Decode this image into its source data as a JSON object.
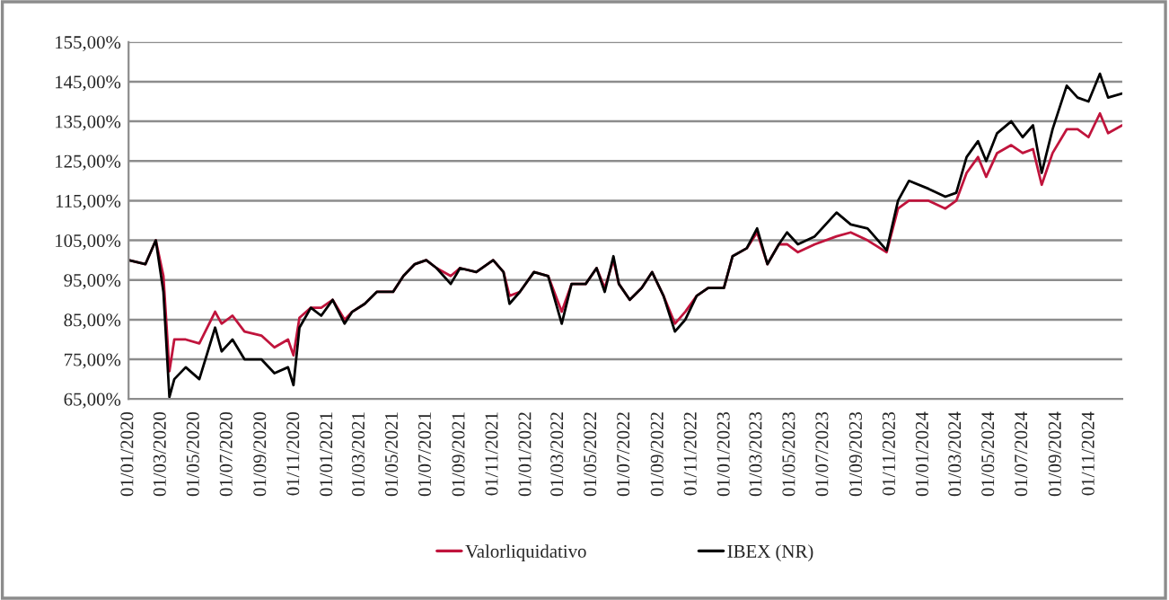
{
  "chart_data": {
    "type": "line",
    "legend": "bottom",
    "grid": "y",
    "line_style": "solid",
    "x": [
      "2020-01-01",
      "2020-02-01",
      "2020-02-20",
      "2020-03-05",
      "2020-03-16",
      "2020-03-25",
      "2020-04-15",
      "2020-05-10",
      "2020-06-08",
      "2020-06-20",
      "2020-07-10",
      "2020-08-01",
      "2020-09-01",
      "2020-09-25",
      "2020-10-20",
      "2020-10-30",
      "2020-11-10",
      "2020-12-01",
      "2020-12-20",
      "2021-01-10",
      "2021-02-01",
      "2021-02-15",
      "2021-03-10",
      "2021-04-01",
      "2021-05-01",
      "2021-05-20",
      "2021-06-10",
      "2021-07-01",
      "2021-07-20",
      "2021-08-15",
      "2021-09-01",
      "2021-10-01",
      "2021-11-01",
      "2021-11-20",
      "2021-12-01",
      "2021-12-20",
      "2022-01-15",
      "2022-02-10",
      "2022-03-07",
      "2022-03-25",
      "2022-04-20",
      "2022-05-10",
      "2022-05-25",
      "2022-06-10",
      "2022-06-20",
      "2022-07-10",
      "2022-08-01",
      "2022-08-20",
      "2022-09-10",
      "2022-10-01",
      "2022-10-20",
      "2022-11-10",
      "2022-12-01",
      "2022-12-30",
      "2023-01-15",
      "2023-02-10",
      "2023-03-01",
      "2023-03-20",
      "2023-04-10",
      "2023-04-25",
      "2023-05-15",
      "2023-06-15",
      "2023-07-25",
      "2023-08-20",
      "2023-09-20",
      "2023-10-25",
      "2023-11-15",
      "2023-12-05",
      "2024-01-10",
      "2024-02-10",
      "2024-03-01",
      "2024-03-20",
      "2024-04-10",
      "2024-04-25",
      "2024-05-15",
      "2024-06-10",
      "2024-07-01",
      "2024-07-20",
      "2024-08-05",
      "2024-08-25",
      "2024-09-20",
      "2024-10-10",
      "2024-10-30",
      "2024-11-20",
      "2024-12-05",
      "2024-12-31"
    ],
    "series": [
      {
        "name": "Valorliquidativo",
        "color": "#c0143c",
        "values": [
          100,
          99,
          105,
          96,
          72,
          80,
          80,
          79,
          87,
          84,
          86,
          82,
          81,
          78,
          80,
          76,
          85.5,
          88,
          88,
          90,
          85,
          87,
          89,
          92,
          92,
          96,
          99,
          100,
          98,
          96,
          98,
          97,
          100,
          97,
          91,
          92,
          97,
          96,
          87,
          94,
          94,
          98,
          93,
          100,
          94,
          90,
          93,
          97,
          91,
          84,
          87,
          91,
          93,
          93,
          101,
          103,
          107,
          99,
          104,
          104,
          102,
          104,
          106,
          107,
          105,
          102,
          113,
          115,
          115,
          113,
          115,
          122,
          126,
          121,
          127,
          129,
          127,
          128,
          119,
          127,
          133,
          133,
          131,
          137,
          132,
          134
        ]
      },
      {
        "name": "IBEX (NR)",
        "color": "#000000",
        "values": [
          100,
          99,
          105,
          92,
          65.5,
          70,
          73,
          70,
          83,
          77,
          80,
          75,
          75,
          71.5,
          73,
          68.5,
          83,
          88,
          86,
          90,
          84,
          87,
          89,
          92,
          92,
          96,
          99,
          100,
          98,
          94,
          98,
          97,
          100,
          97,
          89,
          92,
          97,
          96,
          84,
          94,
          94,
          98,
          92,
          101,
          94,
          90,
          93,
          97,
          91,
          82,
          85,
          91,
          93,
          93,
          101,
          103,
          108,
          99,
          104,
          107,
          104,
          106,
          112,
          109,
          108,
          102.5,
          115,
          120,
          118,
          116,
          117,
          126,
          130,
          125,
          132,
          135,
          131,
          134,
          122,
          133,
          144,
          141,
          140,
          147,
          141,
          142
        ]
      }
    ],
    "ylim": [
      65,
      155
    ],
    "yticks": [
      {
        "value": 65,
        "label": "65,00%"
      },
      {
        "value": 75,
        "label": "75,00%"
      },
      {
        "value": 85,
        "label": "85,00%"
      },
      {
        "value": 95,
        "label": "95,00%"
      },
      {
        "value": 105,
        "label": "105,00%"
      },
      {
        "value": 115,
        "label": "115,00%"
      },
      {
        "value": 125,
        "label": "125,00%"
      },
      {
        "value": 135,
        "label": "135,00%"
      },
      {
        "value": 145,
        "label": "145,00%"
      },
      {
        "value": 155,
        "label": "155,00%"
      }
    ],
    "xlim": [
      "2020-01-01",
      "2024-12-31"
    ],
    "xticks": [
      {
        "value": "2020-01-01",
        "label": "01/01/2020"
      },
      {
        "value": "2020-03-01",
        "label": "01/03/2020"
      },
      {
        "value": "2020-05-01",
        "label": "01/05/2020"
      },
      {
        "value": "2020-07-01",
        "label": "01/07/2020"
      },
      {
        "value": "2020-09-01",
        "label": "01/09/2020"
      },
      {
        "value": "2020-11-01",
        "label": "01/11/2020"
      },
      {
        "value": "2021-01-01",
        "label": "01/01/2021"
      },
      {
        "value": "2021-03-01",
        "label": "01/03/2021"
      },
      {
        "value": "2021-05-01",
        "label": "01/05/2021"
      },
      {
        "value": "2021-07-01",
        "label": "01/07/2021"
      },
      {
        "value": "2021-09-01",
        "label": "01/09/2021"
      },
      {
        "value": "2021-11-01",
        "label": "01/11/2021"
      },
      {
        "value": "2022-01-01",
        "label": "01/01/2022"
      },
      {
        "value": "2022-03-01",
        "label": "01/03/2022"
      },
      {
        "value": "2022-05-01",
        "label": "01/05/2022"
      },
      {
        "value": "2022-07-01",
        "label": "01/07/2022"
      },
      {
        "value": "2022-09-01",
        "label": "01/09/2022"
      },
      {
        "value": "2022-11-01",
        "label": "01/11/2022"
      },
      {
        "value": "2023-01-01",
        "label": "01/01/2023"
      },
      {
        "value": "2023-03-01",
        "label": "01/03/2023"
      },
      {
        "value": "2023-05-01",
        "label": "01/05/2023"
      },
      {
        "value": "2023-07-01",
        "label": "01/07/2023"
      },
      {
        "value": "2023-09-01",
        "label": "01/09/2023"
      },
      {
        "value": "2023-11-01",
        "label": "01/11/2023"
      },
      {
        "value": "2024-01-01",
        "label": "01/01/2024"
      },
      {
        "value": "2024-03-01",
        "label": "01/03/2024"
      },
      {
        "value": "2024-05-01",
        "label": "01/05/2024"
      },
      {
        "value": "2024-07-01",
        "label": "01/07/2024"
      },
      {
        "value": "2024-09-01",
        "label": "01/09/2024"
      },
      {
        "value": "2024-11-01",
        "label": "01/11/2024"
      }
    ]
  }
}
